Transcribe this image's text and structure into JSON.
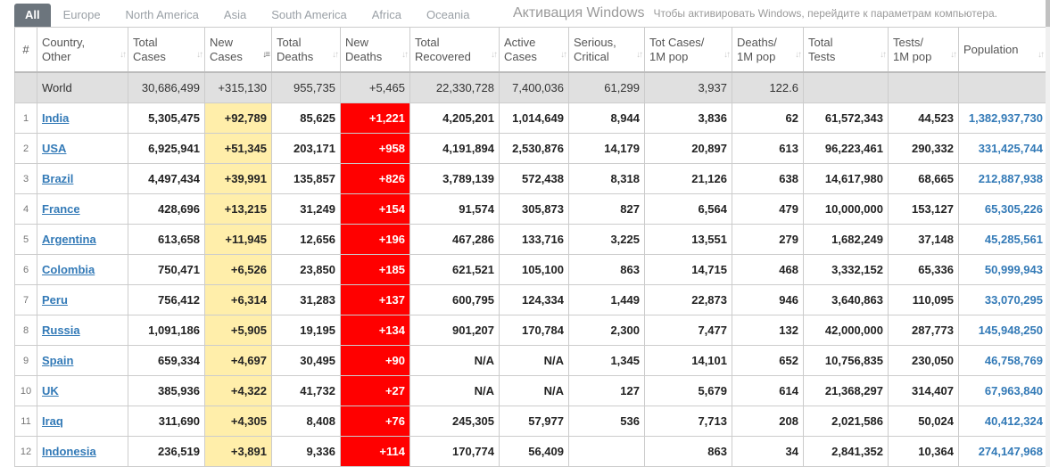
{
  "tabs": [
    "All",
    "Europe",
    "North America",
    "Asia",
    "South America",
    "Africa",
    "Oceania"
  ],
  "columns": [
    {
      "l1": "#",
      "l2": ""
    },
    {
      "l1": "Country,",
      "l2": "Other"
    },
    {
      "l1": "Total",
      "l2": "Cases"
    },
    {
      "l1": "New",
      "l2": "Cases"
    },
    {
      "l1": "Total",
      "l2": "Deaths"
    },
    {
      "l1": "New",
      "l2": "Deaths"
    },
    {
      "l1": "Total",
      "l2": "Recovered"
    },
    {
      "l1": "Active",
      "l2": "Cases"
    },
    {
      "l1": "Serious,",
      "l2": "Critical"
    },
    {
      "l1": "Tot Cases/",
      "l2": "1M pop"
    },
    {
      "l1": "Deaths/",
      "l2": "1M pop"
    },
    {
      "l1": "Total",
      "l2": "Tests"
    },
    {
      "l1": "Tests/",
      "l2": "1M pop"
    },
    {
      "l1": "",
      "l2": "Population"
    }
  ],
  "sorted_column": "New Cases",
  "world": [
    "",
    "World",
    "30,686,499",
    "+315,130",
    "955,735",
    "+5,465",
    "22,330,728",
    "7,400,036",
    "61,299",
    "3,937",
    "122.6",
    "",
    "",
    ""
  ],
  "rows": [
    [
      "1",
      "India",
      "5,305,475",
      "+92,789",
      "85,625",
      "+1,221",
      "4,205,201",
      "1,014,649",
      "8,944",
      "3,836",
      "62",
      "61,572,343",
      "44,523",
      "1,382,937,730"
    ],
    [
      "2",
      "USA",
      "6,925,941",
      "+51,345",
      "203,171",
      "+958",
      "4,191,894",
      "2,530,876",
      "14,179",
      "20,897",
      "613",
      "96,223,461",
      "290,332",
      "331,425,744"
    ],
    [
      "3",
      "Brazil",
      "4,497,434",
      "+39,991",
      "135,857",
      "+826",
      "3,789,139",
      "572,438",
      "8,318",
      "21,126",
      "638",
      "14,617,980",
      "68,665",
      "212,887,938"
    ],
    [
      "4",
      "France",
      "428,696",
      "+13,215",
      "31,249",
      "+154",
      "91,574",
      "305,873",
      "827",
      "6,564",
      "479",
      "10,000,000",
      "153,127",
      "65,305,226"
    ],
    [
      "5",
      "Argentina",
      "613,658",
      "+11,945",
      "12,656",
      "+196",
      "467,286",
      "133,716",
      "3,225",
      "13,551",
      "279",
      "1,682,249",
      "37,148",
      "45,285,561"
    ],
    [
      "6",
      "Colombia",
      "750,471",
      "+6,526",
      "23,850",
      "+185",
      "621,521",
      "105,100",
      "863",
      "14,715",
      "468",
      "3,332,152",
      "65,336",
      "50,999,943"
    ],
    [
      "7",
      "Peru",
      "756,412",
      "+6,314",
      "31,283",
      "+137",
      "600,795",
      "124,334",
      "1,449",
      "22,873",
      "946",
      "3,640,863",
      "110,095",
      "33,070,295"
    ],
    [
      "8",
      "Russia",
      "1,091,186",
      "+5,905",
      "19,195",
      "+134",
      "901,207",
      "170,784",
      "2,300",
      "7,477",
      "132",
      "42,000,000",
      "287,773",
      "145,948,250"
    ],
    [
      "9",
      "Spain",
      "659,334",
      "+4,697",
      "30,495",
      "+90",
      "N/A",
      "N/A",
      "1,345",
      "14,101",
      "652",
      "10,756,835",
      "230,050",
      "46,758,769"
    ],
    [
      "10",
      "UK",
      "385,936",
      "+4,322",
      "41,732",
      "+27",
      "N/A",
      "N/A",
      "127",
      "5,679",
      "614",
      "21,368,297",
      "314,407",
      "67,963,840"
    ],
    [
      "11",
      "Iraq",
      "311,690",
      "+4,305",
      "8,408",
      "+76",
      "245,305",
      "57,977",
      "536",
      "7,713",
      "208",
      "2,021,586",
      "50,024",
      "40,412,324"
    ],
    [
      "12",
      "Indonesia",
      "236,519",
      "+3,891",
      "9,336",
      "+114",
      "170,774",
      "56,409",
      "",
      "863",
      "34",
      "2,841,352",
      "10,364",
      "274,147,968"
    ]
  ],
  "watermark": {
    "title": "Активация Windows",
    "text": "Чтобы активировать Windows, перейдите к параметрам компьютера."
  },
  "colors": {
    "new_cases_bg": "#ffeeaa",
    "new_deaths_bg": "#ff0000",
    "link": "#337ab7",
    "active_tab": "#6c757d",
    "world_row": "#e0e0e0"
  }
}
